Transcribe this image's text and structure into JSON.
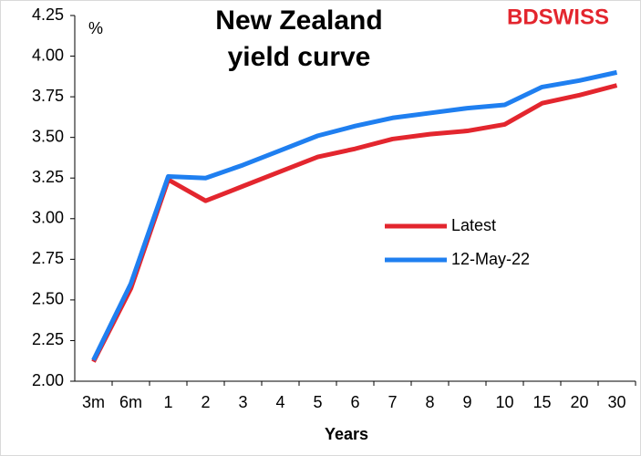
{
  "chart_data": {
    "type": "line",
    "title": [
      "New Zealand",
      "yield curve"
    ],
    "y_label": "%",
    "x_label": "Years",
    "logo": "BDSWISS",
    "categories": [
      "3m",
      "6m",
      "1",
      "2",
      "3",
      "4",
      "5",
      "6",
      "7",
      "8",
      "9",
      "10",
      "15",
      "20",
      "30"
    ],
    "series": [
      {
        "name": "Latest",
        "color": "#e3262e",
        "values": [
          2.12,
          2.57,
          3.24,
          3.11,
          3.2,
          3.29,
          3.38,
          3.43,
          3.49,
          3.52,
          3.54,
          3.58,
          3.71,
          3.76,
          3.82
        ]
      },
      {
        "name": "12-May-22",
        "color": "#1f7ff0",
        "values": [
          2.13,
          2.6,
          3.26,
          3.25,
          3.33,
          3.42,
          3.51,
          3.57,
          3.62,
          3.65,
          3.68,
          3.7,
          3.81,
          3.85,
          3.9
        ]
      }
    ],
    "ylim": [
      2.0,
      4.25
    ],
    "yticks": [
      {
        "value": 2,
        "label": "2.00"
      },
      {
        "value": 2.25,
        "label": "2.25"
      },
      {
        "value": 2.5,
        "label": "2.50"
      },
      {
        "value": 2.75,
        "label": "2.75"
      },
      {
        "value": 3,
        "label": "3.00"
      },
      {
        "value": 3.25,
        "label": "3.25"
      },
      {
        "value": 3.5,
        "label": "3.50"
      },
      {
        "value": 3.75,
        "label": "3.75"
      },
      {
        "value": 4,
        "label": "4.00"
      },
      {
        "value": 4.25,
        "label": "4.25"
      }
    ],
    "grid": false
  }
}
